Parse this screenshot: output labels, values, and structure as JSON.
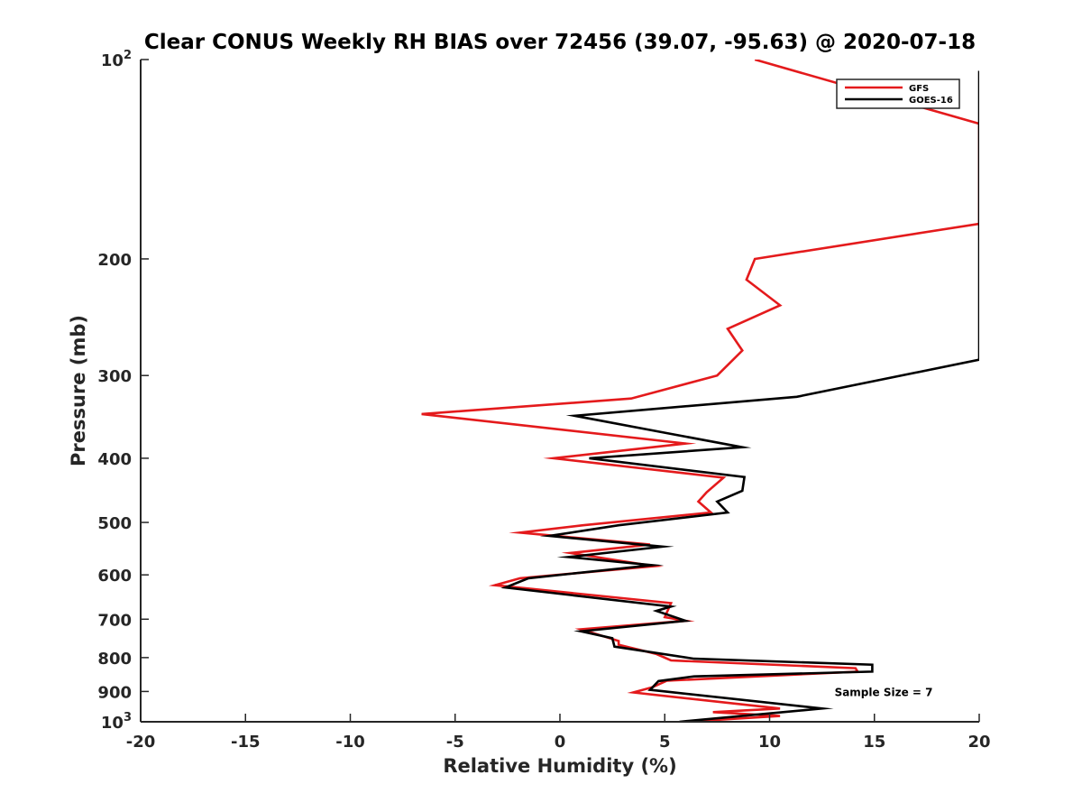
{
  "chart_data": {
    "type": "line",
    "title": "Clear CONUS Weekly RH BIAS over 72456 (39.07, -95.63) @ 2020-07-18",
    "xlabel": "Relative Humidity (%)",
    "ylabel": "Pressure (mb)",
    "xlim": [
      -20,
      20
    ],
    "ylim": [
      100,
      1000
    ],
    "yscale": "log",
    "y_reversed": true,
    "grid": false,
    "legend_position": "top-right",
    "x_ticks": [
      "-20",
      "-15",
      "-10",
      "-5",
      "0",
      "5",
      "10",
      "15",
      "20"
    ],
    "y_ticks": [
      {
        "value": 100,
        "base": "10",
        "exp": "2"
      },
      {
        "value": 200,
        "label": "200"
      },
      {
        "value": 300,
        "label": "300"
      },
      {
        "value": 400,
        "label": "400"
      },
      {
        "value": 500,
        "label": "500"
      },
      {
        "value": 600,
        "label": "600"
      },
      {
        "value": 700,
        "label": "700"
      },
      {
        "value": 800,
        "label": "800"
      },
      {
        "value": 900,
        "label": "900"
      },
      {
        "value": 1000,
        "base": "10",
        "exp": "3"
      }
    ],
    "series": [
      {
        "name": "GFS",
        "color": "#e41a1c",
        "points": [
          [
            9.3,
            100
          ],
          [
            20,
            125
          ],
          [
            20,
            177
          ],
          [
            9.3,
            200
          ],
          [
            8.9,
            215
          ],
          [
            10.5,
            235
          ],
          [
            8.0,
            255
          ],
          [
            8.7,
            275
          ],
          [
            7.5,
            300
          ],
          [
            3.4,
            325
          ],
          [
            -6.6,
            343
          ],
          [
            6.0,
            380
          ],
          [
            -0.3,
            400
          ],
          [
            7.8,
            428
          ],
          [
            7.0,
            450
          ],
          [
            6.6,
            465
          ],
          [
            7.2,
            483
          ],
          [
            1.1,
            505
          ],
          [
            -1.9,
            518
          ],
          [
            4.3,
            540
          ],
          [
            0.5,
            556
          ],
          [
            4.5,
            582
          ],
          [
            -1.9,
            607
          ],
          [
            -3.1,
            622
          ],
          [
            5.3,
            662
          ],
          [
            5.0,
            695
          ],
          [
            6.0,
            704
          ],
          [
            1.0,
            725
          ],
          [
            2.8,
            755
          ],
          [
            2.8,
            765
          ],
          [
            4.6,
            790
          ],
          [
            5.3,
            808
          ],
          [
            14.1,
            830
          ],
          [
            14.2,
            840
          ],
          [
            5.1,
            867
          ],
          [
            4.4,
            887
          ],
          [
            3.5,
            903
          ],
          [
            10.5,
            955
          ],
          [
            7.3,
            967
          ],
          [
            10.5,
            980
          ],
          [
            6.0,
            1000
          ]
        ]
      },
      {
        "name": "GOES-16",
        "color": "#000000",
        "points": [
          [
            20,
            104
          ],
          [
            20,
            284
          ],
          [
            11.3,
            323
          ],
          [
            0.7,
            345
          ],
          [
            5.2,
            367
          ],
          [
            8.7,
            385
          ],
          [
            1.4,
            400
          ],
          [
            8.8,
            427
          ],
          [
            8.7,
            448
          ],
          [
            7.5,
            465
          ],
          [
            8.0,
            483
          ],
          [
            2.8,
            505
          ],
          [
            -0.5,
            524
          ],
          [
            4.9,
            544
          ],
          [
            0.4,
            564
          ],
          [
            4.4,
            580
          ],
          [
            -1.5,
            607
          ],
          [
            -2.6,
            627
          ],
          [
            5.3,
            670
          ],
          [
            4.6,
            680
          ],
          [
            6.0,
            704
          ],
          [
            1.0,
            730
          ],
          [
            2.5,
            748
          ],
          [
            2.6,
            770
          ],
          [
            6.4,
            803
          ],
          [
            14.9,
            820
          ],
          [
            14.9,
            840
          ],
          [
            6.4,
            854
          ],
          [
            4.7,
            868
          ],
          [
            4.3,
            895
          ],
          [
            12.5,
            955
          ],
          [
            5.7,
            1000
          ]
        ]
      }
    ],
    "annotations": [
      {
        "text": "Sample Size = 7",
        "x": 13.1,
        "y": 900
      }
    ]
  }
}
